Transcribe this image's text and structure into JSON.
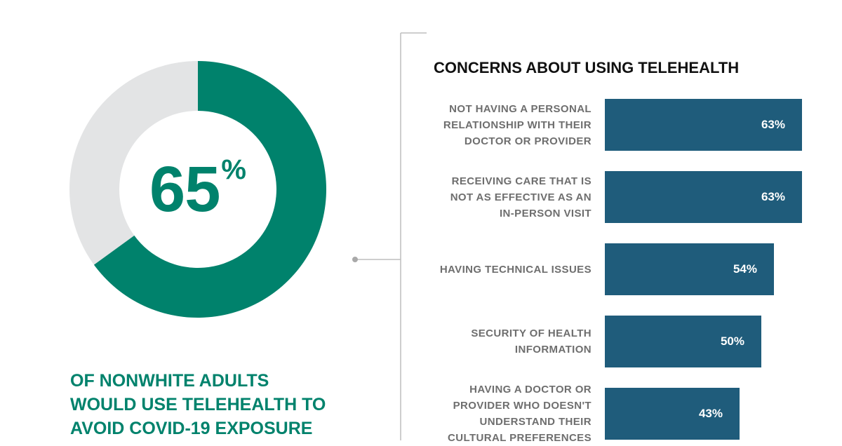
{
  "donut": {
    "value_number": "65",
    "value_unit": "%",
    "fraction": 0.65,
    "colors": {
      "fill": "#00826c",
      "remainder": "#e3e4e5"
    }
  },
  "headline": {
    "lines": [
      "OF NONWHITE ADULTS",
      "WOULD USE TELEHEALTH TO",
      "AVOID COVID-19 EXPOSURE"
    ]
  },
  "chart_data": {
    "type": "bar",
    "orientation": "horizontal",
    "title": "CONCERNS ABOUT USING TELEHEALTH",
    "categories": [
      [
        "NOT HAVING A PERSONAL",
        "RELATIONSHIP WITH THEIR",
        "DOCTOR OR PROVIDER"
      ],
      [
        "RECEIVING CARE THAT IS",
        "NOT AS EFFECTIVE AS AN",
        "IN-PERSON VISIT"
      ],
      [
        "HAVING TECHNICAL ISSUES"
      ],
      [
        "SECURITY OF HEALTH",
        "INFORMATION"
      ],
      [
        "HAVING A DOCTOR OR",
        "PROVIDER WHO DOESN'T",
        "UNDERSTAND THEIR",
        "CULTURAL PREFERENCES"
      ]
    ],
    "values": [
      63,
      63,
      54,
      50,
      43
    ],
    "value_labels": [
      "63%",
      "63%",
      "54%",
      "50%",
      "43%"
    ],
    "unit": "%",
    "colors": {
      "bar": "#1f5c7b",
      "bar_text": "#ffffff",
      "label_text": "#6e6e6e"
    },
    "grid": false,
    "legend": false
  }
}
